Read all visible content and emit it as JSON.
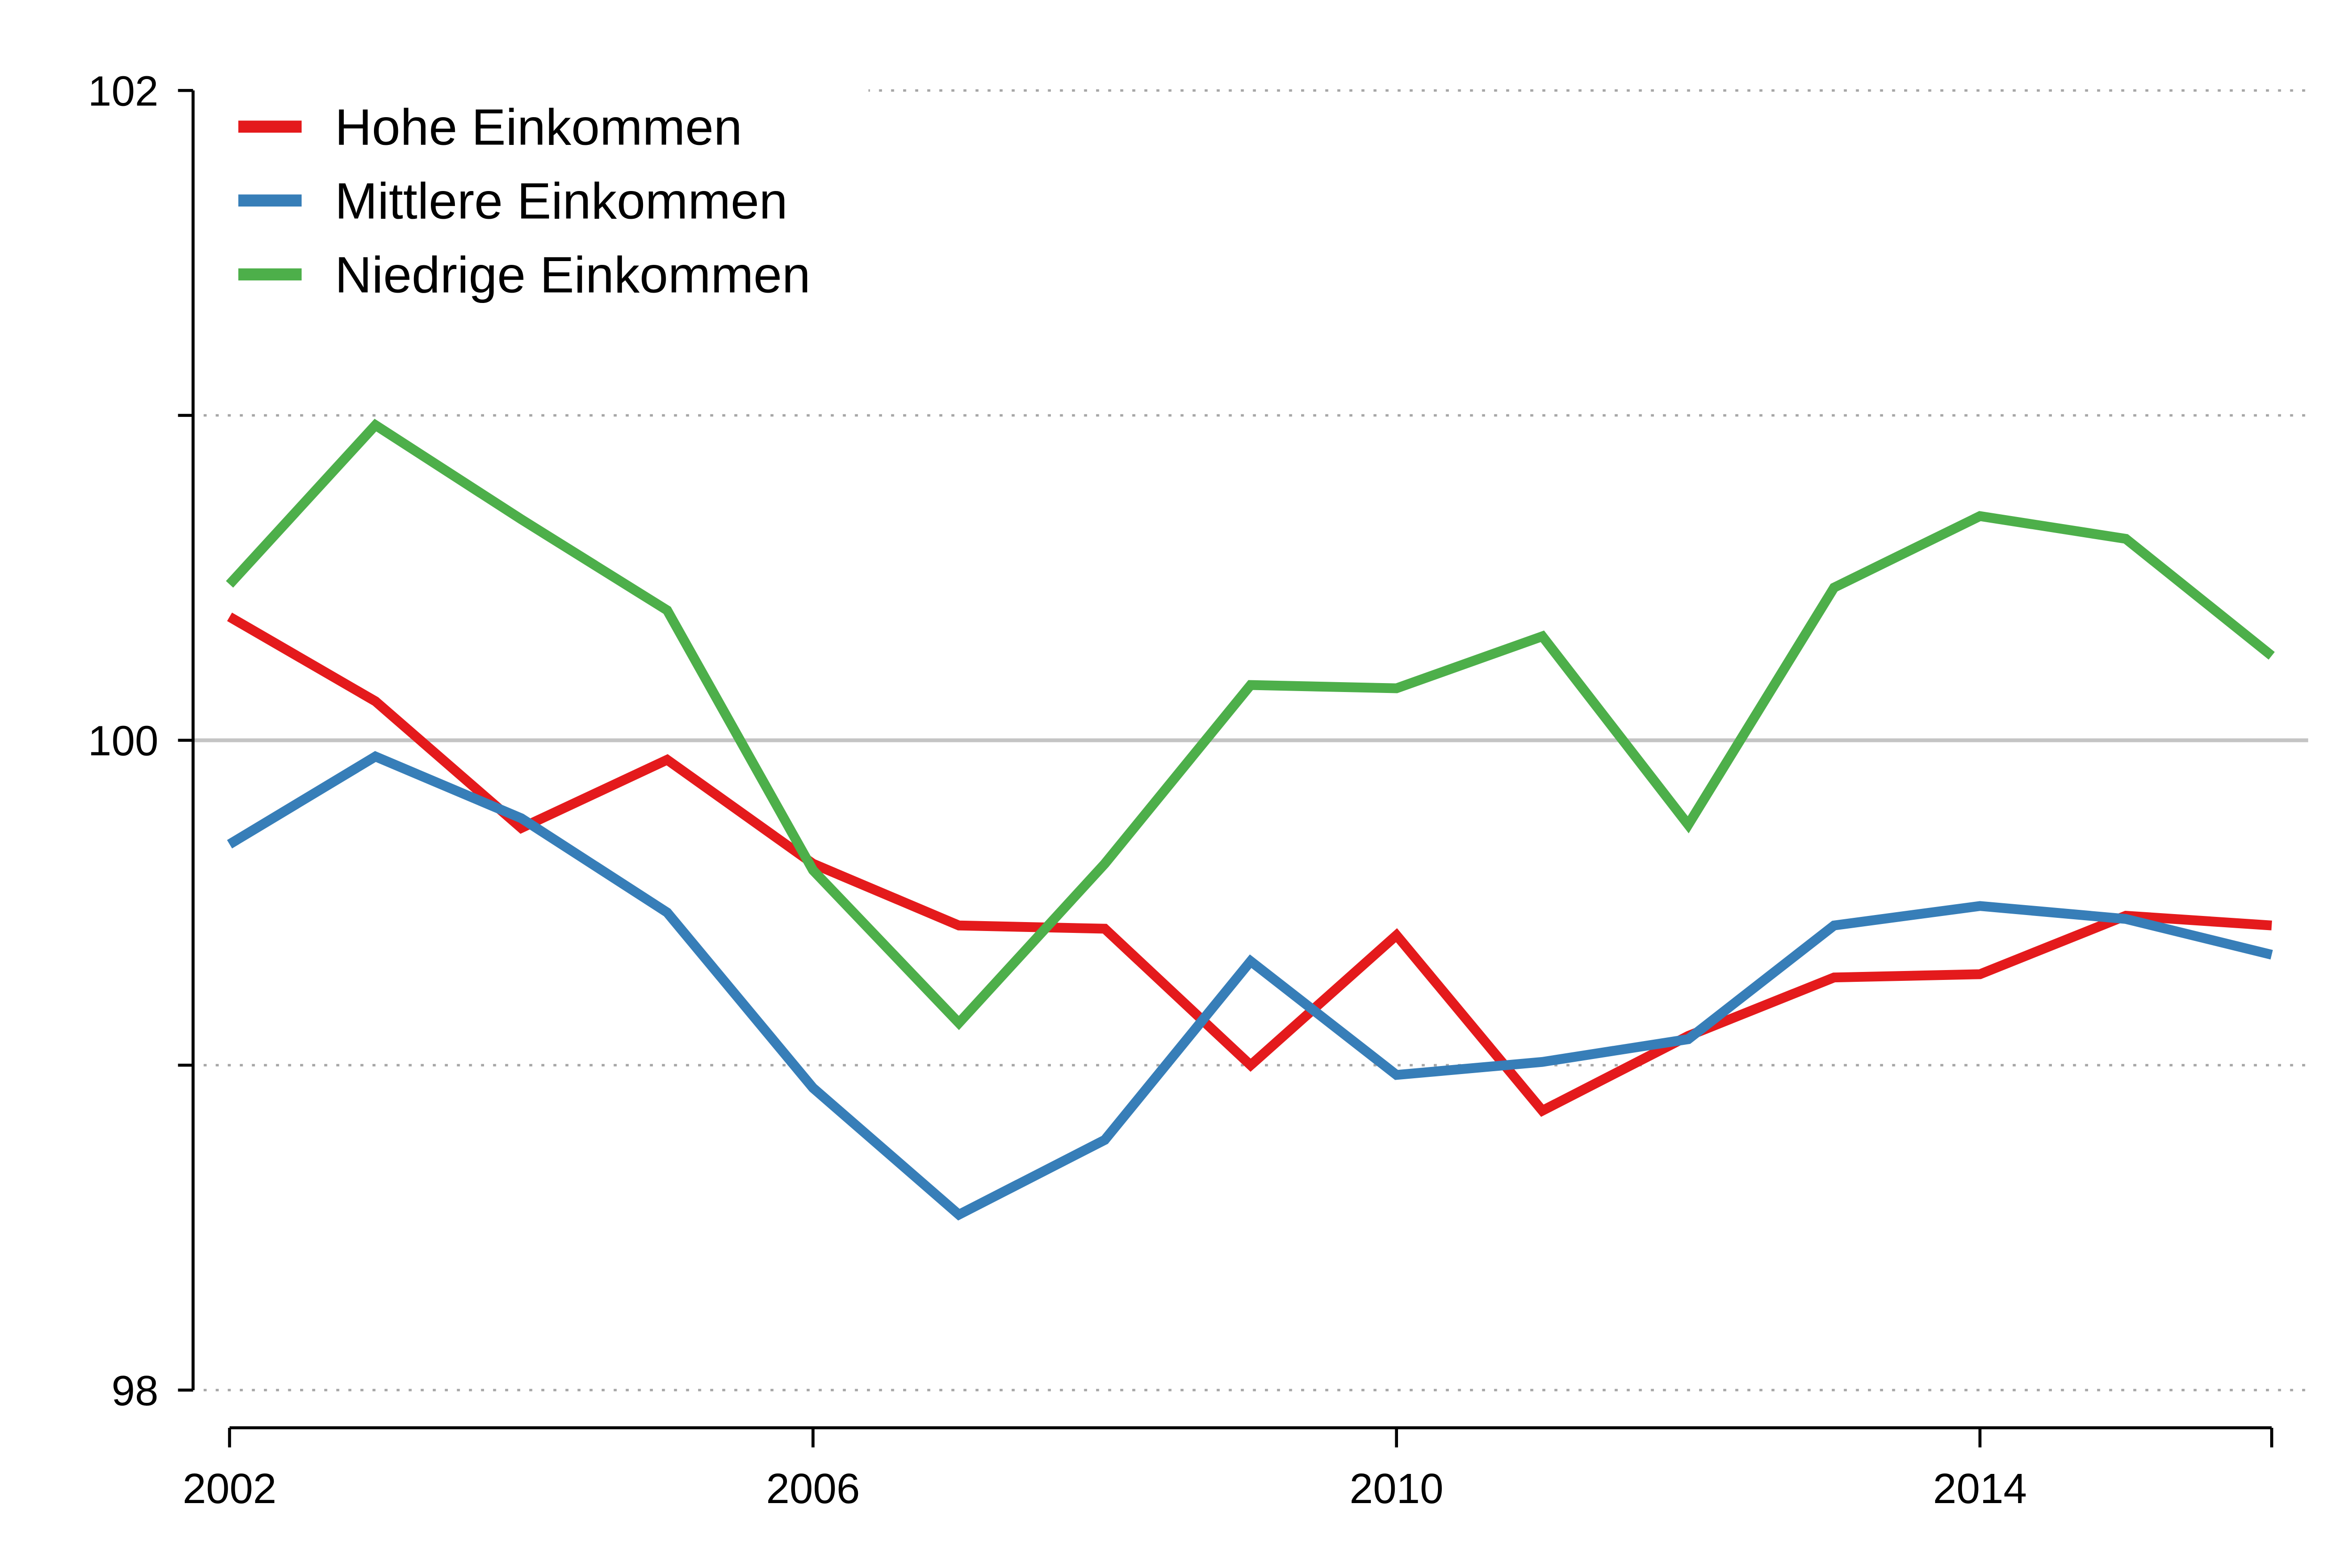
{
  "chart_data": {
    "type": "line",
    "title": "",
    "xlabel": "",
    "ylabel": "",
    "x": [
      2002,
      2003,
      2004,
      2005,
      2006,
      2007,
      2008,
      2009,
      2010,
      2011,
      2012,
      2013,
      2014,
      2015,
      2016
    ],
    "series": [
      {
        "name": "Hohe Einkommen",
        "color": "#e41a1c",
        "values": [
          100.38,
          100.12,
          99.73,
          99.94,
          99.62,
          99.43,
          99.42,
          99.0,
          99.4,
          98.86,
          99.09,
          99.27,
          99.28,
          99.46,
          99.43
        ]
      },
      {
        "name": "Mittlere Einkommen",
        "color": "#377eb8",
        "values": [
          99.68,
          99.95,
          99.76,
          99.47,
          98.93,
          98.54,
          98.77,
          99.32,
          98.97,
          99.01,
          99.08,
          99.43,
          99.49,
          99.45,
          99.34
        ]
      },
      {
        "name": "Niedrige Einkommen",
        "color": "#4daf4a",
        "values": [
          100.48,
          100.97,
          100.68,
          100.4,
          99.6,
          99.13,
          99.62,
          100.17,
          100.16,
          100.32,
          99.74,
          100.47,
          100.69,
          100.62,
          100.26
        ]
      }
    ],
    "xlim": [
      2001.75,
      2016.25
    ],
    "ylim": [
      98,
      102
    ],
    "xticks": [
      2002,
      2006,
      2010,
      2014,
      2016
    ],
    "xtick_labels": [
      {
        "value": 2002,
        "text": "2002"
      },
      {
        "value": 2006,
        "text": "2006"
      },
      {
        "value": 2010,
        "text": "2010"
      },
      {
        "value": 2014,
        "text": "2014"
      }
    ],
    "yticks": [
      98,
      99,
      100,
      101,
      102
    ],
    "ytick_labels": [
      {
        "value": 98,
        "text": "98"
      },
      {
        "value": 100,
        "text": "100"
      },
      {
        "value": 102,
        "text": "102"
      }
    ],
    "grid": {
      "style": "dotted",
      "color": "#a6a6a6",
      "values": [
        98,
        99,
        101,
        102
      ]
    },
    "reference_line": {
      "value": 100,
      "style": "solid",
      "color": "#c4c4c4"
    },
    "axis_color": "#000000",
    "legend": {
      "position": "top-left"
    }
  }
}
